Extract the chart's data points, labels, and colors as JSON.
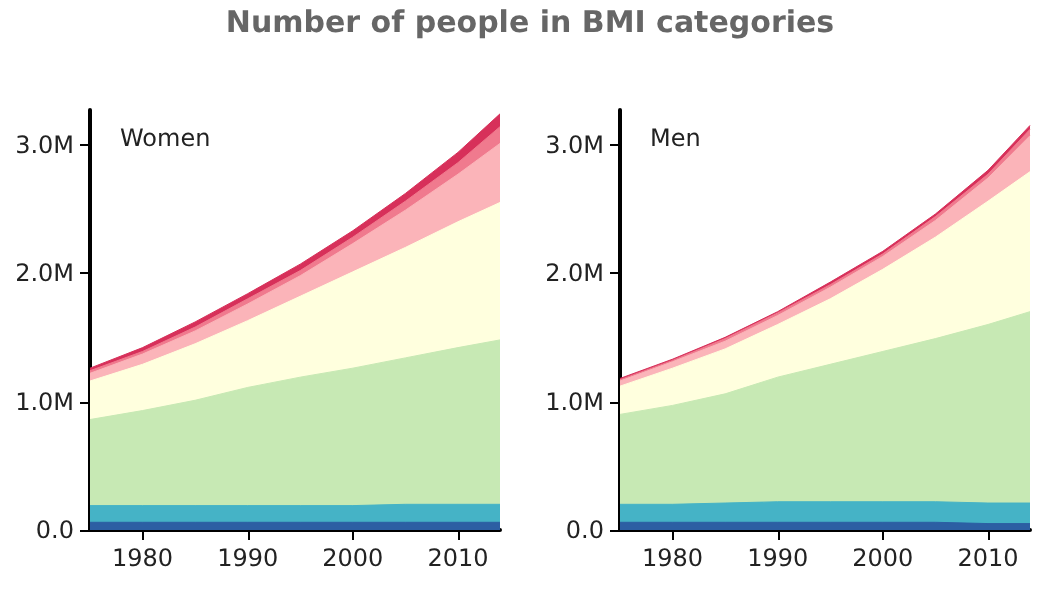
{
  "chart_data": [
    {
      "type": "area",
      "title": "Women",
      "annotations": [
        "Number of people in BMI categories"
      ],
      "stacked": true,
      "grid": false,
      "x": [
        1975,
        1980,
        1985,
        1990,
        1995,
        2000,
        2005,
        2010,
        2014
      ],
      "xlim": [
        1975,
        2014
      ],
      "xticks": [
        1980,
        1990,
        2000,
        2010
      ],
      "ylim": [
        0,
        3270000
      ],
      "yticks": [
        {
          "value": 0,
          "label": "0.0"
        },
        {
          "value": 1000000,
          "label": "1.0M"
        },
        {
          "value": 2000000,
          "label": "2.0M"
        },
        {
          "value": 3000000,
          "label": "3.0M"
        }
      ],
      "series": [
        {
          "color": "#2c5fa3",
          "values": [
            60000,
            60000,
            60000,
            60000,
            60000,
            60000,
            60000,
            60000,
            60000
          ]
        },
        {
          "color": "#45b3c6",
          "values": [
            130000,
            130000,
            130000,
            130000,
            130000,
            130000,
            140000,
            140000,
            140000
          ]
        },
        {
          "color": "#c7e9b4",
          "values": [
            670000,
            740000,
            820000,
            920000,
            1000000,
            1070000,
            1140000,
            1220000,
            1280000
          ]
        },
        {
          "color": "#ffffde",
          "values": [
            300000,
            360000,
            440000,
            520000,
            630000,
            750000,
            860000,
            980000,
            1070000
          ]
        },
        {
          "color": "#fbb4b9",
          "values": [
            60000,
            80000,
            100000,
            130000,
            160000,
            220000,
            290000,
            370000,
            460000
          ]
        },
        {
          "color": "#f07a8e",
          "values": [
            20000,
            20000,
            30000,
            40000,
            40000,
            50000,
            70000,
            90000,
            130000
          ]
        },
        {
          "color": "#d7305a",
          "values": [
            20000,
            30000,
            40000,
            40000,
            50000,
            50000,
            60000,
            80000,
            100000
          ]
        }
      ]
    },
    {
      "type": "area",
      "title": "Men",
      "stacked": true,
      "grid": false,
      "x": [
        1975,
        1980,
        1985,
        1990,
        1995,
        2000,
        2005,
        2010,
        2014
      ],
      "xlim": [
        1975,
        2014
      ],
      "xticks": [
        1980,
        1990,
        2000,
        2010
      ],
      "ylim": [
        0,
        3270000
      ],
      "yticks": [
        {
          "value": 0,
          "label": "0.0"
        },
        {
          "value": 1000000,
          "label": "1.0M"
        },
        {
          "value": 2000000,
          "label": "2.0M"
        },
        {
          "value": 3000000,
          "label": "3.0M"
        }
      ],
      "series": [
        {
          "color": "#2c5fa3",
          "values": [
            60000,
            60000,
            60000,
            60000,
            60000,
            60000,
            60000,
            50000,
            50000
          ]
        },
        {
          "color": "#45b3c6",
          "values": [
            140000,
            140000,
            150000,
            160000,
            160000,
            160000,
            160000,
            160000,
            160000
          ]
        },
        {
          "color": "#c7e9b4",
          "values": [
            700000,
            770000,
            850000,
            970000,
            1070000,
            1170000,
            1270000,
            1390000,
            1490000
          ]
        },
        {
          "color": "#ffffde",
          "values": [
            220000,
            290000,
            350000,
            410000,
            510000,
            640000,
            790000,
            960000,
            1090000
          ]
        },
        {
          "color": "#fbb4b9",
          "values": [
            40000,
            50000,
            60000,
            70000,
            90000,
            100000,
            130000,
            180000,
            280000
          ]
        },
        {
          "color": "#f07a8e",
          "values": [
            10000,
            10000,
            20000,
            20000,
            20000,
            20000,
            30000,
            30000,
            50000
          ]
        },
        {
          "color": "#d7305a",
          "values": [
            10000,
            10000,
            10000,
            10000,
            20000,
            20000,
            20000,
            30000,
            30000
          ]
        }
      ]
    }
  ]
}
